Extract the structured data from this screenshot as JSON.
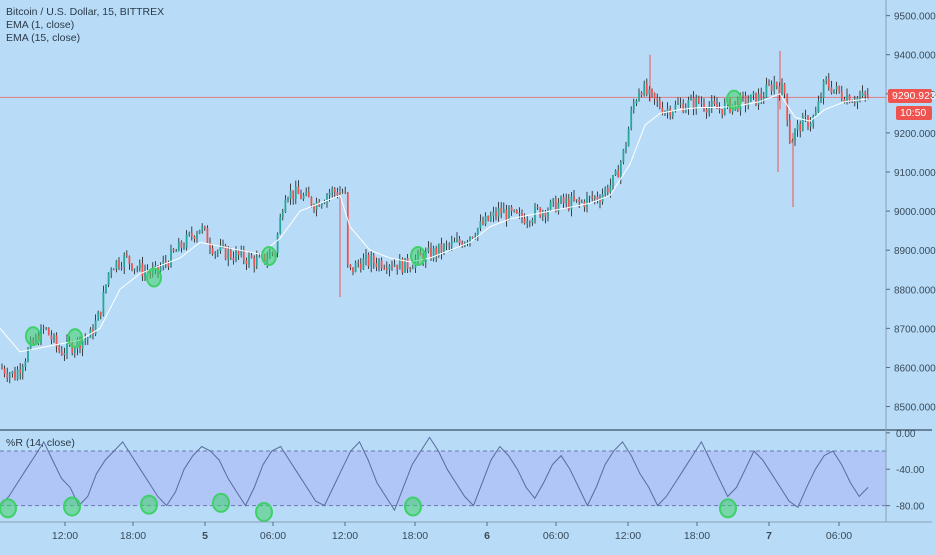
{
  "chart_data": [
    {
      "type": "candlestick",
      "title": "Bitcoin / U.S. Dollar, 15, BITTREX",
      "indicators": [
        "EMA (1, close)",
        "EMA (15, close)"
      ],
      "y_ticks": [
        8500,
        8600,
        8700,
        8800,
        8900,
        9000,
        9100,
        9200,
        9300,
        9400,
        9500
      ],
      "y_tick_labels": [
        "8500.000",
        "8600.000",
        "8700.000",
        "8800.000",
        "8900.000",
        "9000.000",
        "9100.000",
        "9200.000",
        "9300.000",
        "9400.000",
        "9500.000"
      ],
      "ylim": [
        8440,
        9540
      ],
      "current_price": 9290.923,
      "current_price_label": "9290.923",
      "countdown": "10:50",
      "colors": {
        "up": "#26a69a",
        "down": "#ef5350",
        "ema15": "#ffffff",
        "ema1": "#000000",
        "marker": "#3fd06a"
      },
      "series_path": [
        [
          0,
          8600
        ],
        [
          15,
          8580
        ],
        [
          30,
          8650
        ],
        [
          45,
          8700
        ],
        [
          60,
          8640
        ],
        [
          75,
          8660
        ],
        [
          90,
          8680
        ],
        [
          100,
          8740
        ],
        [
          110,
          8860
        ],
        [
          125,
          8880
        ],
        [
          140,
          8850
        ],
        [
          155,
          8840
        ],
        [
          170,
          8880
        ],
        [
          185,
          8920
        ],
        [
          200,
          8960
        ],
        [
          215,
          8900
        ],
        [
          230,
          8890
        ],
        [
          245,
          8880
        ],
        [
          260,
          8870
        ],
        [
          275,
          8900
        ],
        [
          285,
          9050
        ],
        [
          300,
          9040
        ],
        [
          315,
          9020
        ],
        [
          330,
          9050
        ],
        [
          345,
          9050
        ],
        [
          348,
          8840
        ],
        [
          360,
          8870
        ],
        [
          375,
          8870
        ],
        [
          390,
          8870
        ],
        [
          405,
          8860
        ],
        [
          420,
          8880
        ],
        [
          440,
          8900
        ],
        [
          460,
          8920
        ],
        [
          480,
          8960
        ],
        [
          500,
          9000
        ],
        [
          520,
          8980
        ],
        [
          540,
          9000
        ],
        [
          560,
          9020
        ],
        [
          580,
          9020
        ],
        [
          600,
          9040
        ],
        [
          615,
          9080
        ],
        [
          625,
          9160
        ],
        [
          632,
          9260
        ],
        [
          640,
          9320
        ],
        [
          650,
          9290
        ],
        [
          665,
          9260
        ],
        [
          680,
          9270
        ],
        [
          700,
          9280
        ],
        [
          715,
          9260
        ],
        [
          730,
          9270
        ],
        [
          745,
          9280
        ],
        [
          760,
          9290
        ],
        [
          775,
          9330
        ],
        [
          785,
          9300
        ],
        [
          790,
          9180
        ],
        [
          800,
          9220
        ],
        [
          815,
          9240
        ],
        [
          825,
          9330
        ],
        [
          840,
          9300
        ],
        [
          855,
          9290
        ],
        [
          868,
          9292
        ]
      ],
      "ema15_path": [
        [
          0,
          8700
        ],
        [
          20,
          8640
        ],
        [
          40,
          8650
        ],
        [
          60,
          8660
        ],
        [
          80,
          8670
        ],
        [
          100,
          8700
        ],
        [
          120,
          8800
        ],
        [
          140,
          8840
        ],
        [
          160,
          8860
        ],
        [
          180,
          8880
        ],
        [
          200,
          8920
        ],
        [
          220,
          8910
        ],
        [
          240,
          8900
        ],
        [
          260,
          8890
        ],
        [
          280,
          8930
        ],
        [
          300,
          9000
        ],
        [
          320,
          9020
        ],
        [
          340,
          9040
        ],
        [
          350,
          8960
        ],
        [
          370,
          8900
        ],
        [
          390,
          8880
        ],
        [
          410,
          8870
        ],
        [
          430,
          8880
        ],
        [
          450,
          8900
        ],
        [
          470,
          8920
        ],
        [
          490,
          8960
        ],
        [
          510,
          8980
        ],
        [
          530,
          8990
        ],
        [
          550,
          9000
        ],
        [
          570,
          9010
        ],
        [
          590,
          9020
        ],
        [
          610,
          9040
        ],
        [
          630,
          9120
        ],
        [
          645,
          9220
        ],
        [
          660,
          9250
        ],
        [
          680,
          9260
        ],
        [
          700,
          9265
        ],
        [
          720,
          9265
        ],
        [
          740,
          9270
        ],
        [
          760,
          9280
        ],
        [
          780,
          9300
        ],
        [
          795,
          9240
        ],
        [
          810,
          9230
        ],
        [
          825,
          9260
        ],
        [
          845,
          9280
        ],
        [
          868,
          9287
        ]
      ],
      "markers": [
        {
          "x": 33,
          "y": 8680
        },
        {
          "x": 75,
          "y": 8675
        },
        {
          "x": 154,
          "y": 8830
        },
        {
          "x": 269,
          "y": 8885
        },
        {
          "x": 418,
          "y": 8885
        },
        {
          "x": 734,
          "y": 9285
        }
      ],
      "spikes": [
        {
          "x": 340,
          "y1": 8780,
          "y2": 9050
        },
        {
          "x": 778,
          "y1": 9100,
          "y2": 9300
        },
        {
          "x": 793,
          "y1": 9010,
          "y2": 9200
        },
        {
          "x": 650,
          "y1": 9280,
          "y2": 9400
        },
        {
          "x": 780,
          "y1": 9260,
          "y2": 9410
        }
      ]
    },
    {
      "type": "line",
      "title": "%R (14, close)",
      "y_ticks": [
        0,
        -40,
        -80
      ],
      "y_tick_labels": [
        "0.00",
        "-40.00",
        "-80.00"
      ],
      "ylim": [
        -98,
        2
      ],
      "band": [
        -20,
        -80
      ],
      "colors": {
        "line": "#5a6aa0",
        "band": "#a9b7f5",
        "marker": "#3fd06a"
      },
      "values": [
        -80,
        -70,
        -55,
        -40,
        -25,
        -10,
        -30,
        -50,
        -60,
        -80,
        -70,
        -45,
        -30,
        -20,
        -10,
        -25,
        -40,
        -55,
        -70,
        -80,
        -65,
        -40,
        -25,
        -15,
        -20,
        -30,
        -50,
        -65,
        -80,
        -60,
        -35,
        -20,
        -15,
        -30,
        -45,
        -60,
        -75,
        -80,
        -60,
        -40,
        -20,
        -10,
        -30,
        -55,
        -70,
        -85,
        -60,
        -35,
        -20,
        -5,
        -20,
        -40,
        -55,
        -70,
        -80,
        -55,
        -30,
        -15,
        -25,
        -40,
        -60,
        -72,
        -55,
        -35,
        -25,
        -40,
        -60,
        -80,
        -60,
        -35,
        -20,
        -10,
        -25,
        -45,
        -60,
        -80,
        -70,
        -55,
        -40,
        -25,
        -10,
        -30,
        -50,
        -70,
        -60,
        -40,
        -20,
        -30,
        -45,
        -60,
        -75,
        -82,
        -60,
        -40,
        -25,
        -20,
        -35,
        -55,
        -70,
        -60
      ],
      "markers": [
        {
          "x": 8,
          "v": -83
        },
        {
          "x": 72,
          "v": -81
        },
        {
          "x": 149,
          "v": -79
        },
        {
          "x": 221,
          "v": -77
        },
        {
          "x": 264,
          "v": -87
        },
        {
          "x": 413,
          "v": -81
        },
        {
          "x": 728,
          "v": -83
        }
      ],
      "x_tick_labels": [
        {
          "label": "12:00",
          "bold": false
        },
        {
          "label": "18:00",
          "bold": false
        },
        {
          "label": "5",
          "bold": true
        },
        {
          "label": "06:00",
          "bold": false
        },
        {
          "label": "12:00",
          "bold": false
        },
        {
          "label": "18:00",
          "bold": false
        },
        {
          "label": "6",
          "bold": true
        },
        {
          "label": "06:00",
          "bold": false
        },
        {
          "label": "12:00",
          "bold": false
        },
        {
          "label": "18:00",
          "bold": false
        },
        {
          "label": "7",
          "bold": true
        },
        {
          "label": "06:00",
          "bold": false
        }
      ]
    }
  ]
}
